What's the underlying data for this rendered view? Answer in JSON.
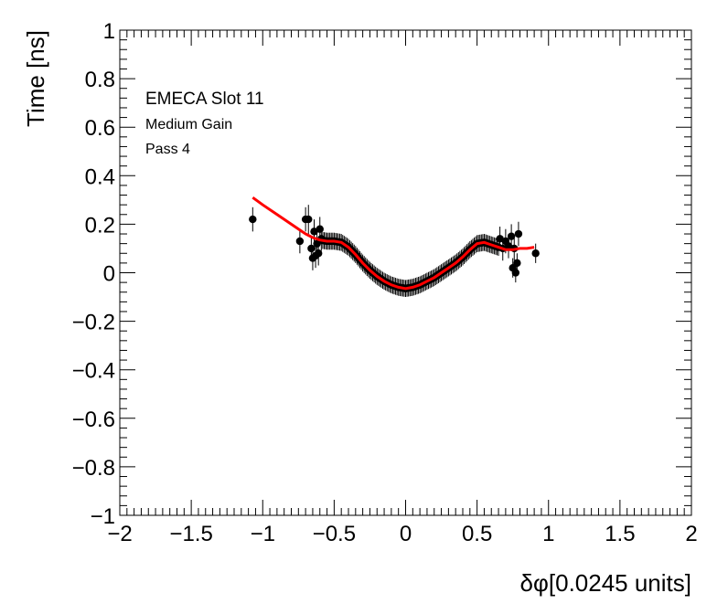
{
  "chart_data": {
    "type": "scatter",
    "title": "",
    "xlabel": "δφ[0.0245 units]",
    "ylabel": "Time [ns]",
    "xlim": [
      -2,
      2
    ],
    "ylim": [
      -1,
      1
    ],
    "x_ticks": [
      -2,
      -1.5,
      -1,
      -0.5,
      0,
      0.5,
      1,
      1.5,
      2
    ],
    "x_tick_labels": [
      "−2",
      "−1.5",
      "−1",
      "−0.5",
      "0",
      "0.5",
      "1",
      "1.5",
      "2"
    ],
    "y_ticks": [
      -1,
      -0.8,
      -0.6,
      -0.4,
      -0.2,
      0,
      0.2,
      0.4,
      0.6,
      0.8,
      1
    ],
    "y_tick_labels": [
      "−1",
      "−0.8",
      "−0.6",
      "−0.4",
      "−0.2",
      "0",
      "0.2",
      "0.4",
      "0.6",
      "0.8",
      "1"
    ],
    "annotations": [
      "EMECA Slot 11",
      "Medium Gain",
      "Pass 4"
    ],
    "grid": false,
    "colors": {
      "points": "#000000",
      "fit": "#ff0000"
    },
    "outlier_points": [
      {
        "x": -1.07,
        "y": 0.22,
        "err": 0.05
      },
      {
        "x": -0.74,
        "y": 0.13,
        "err": 0.05
      },
      {
        "x": -0.7,
        "y": 0.22,
        "err": 0.05
      },
      {
        "x": -0.68,
        "y": 0.22,
        "err": 0.06
      },
      {
        "x": -0.66,
        "y": 0.1,
        "err": 0.05
      },
      {
        "x": -0.65,
        "y": 0.06,
        "err": 0.05
      },
      {
        "x": -0.64,
        "y": 0.17,
        "err": 0.05
      },
      {
        "x": -0.63,
        "y": 0.07,
        "err": 0.05
      },
      {
        "x": -0.62,
        "y": 0.12,
        "err": 0.05
      },
      {
        "x": -0.61,
        "y": 0.08,
        "err": 0.05
      },
      {
        "x": -0.6,
        "y": 0.18,
        "err": 0.05
      },
      {
        "x": -0.59,
        "y": 0.14,
        "err": 0.05
      },
      {
        "x": 0.66,
        "y": 0.14,
        "err": 0.05
      },
      {
        "x": 0.68,
        "y": 0.1,
        "err": 0.05
      },
      {
        "x": 0.7,
        "y": 0.13,
        "err": 0.05
      },
      {
        "x": 0.72,
        "y": 0.11,
        "err": 0.05
      },
      {
        "x": 0.74,
        "y": 0.15,
        "err": 0.05
      },
      {
        "x": 0.75,
        "y": 0.02,
        "err": 0.04
      },
      {
        "x": 0.76,
        "y": 0.1,
        "err": 0.05
      },
      {
        "x": 0.77,
        "y": 0.0,
        "err": 0.04
      },
      {
        "x": 0.78,
        "y": 0.04,
        "err": 0.04
      },
      {
        "x": 0.79,
        "y": 0.16,
        "err": 0.05
      },
      {
        "x": 0.91,
        "y": 0.08,
        "err": 0.04
      }
    ],
    "dense_series": {
      "x_start": -0.58,
      "x_end": 0.65,
      "step": 0.01,
      "err": 0.035
    },
    "fit_curve": {
      "x": [
        -1.07,
        -1.0,
        -0.9,
        -0.8,
        -0.7,
        -0.65,
        -0.6,
        -0.55,
        -0.5,
        -0.45,
        -0.4,
        -0.35,
        -0.3,
        -0.25,
        -0.2,
        -0.15,
        -0.1,
        -0.05,
        0.0,
        0.05,
        0.1,
        0.15,
        0.2,
        0.25,
        0.3,
        0.35,
        0.4,
        0.45,
        0.5,
        0.55,
        0.6,
        0.65,
        0.7,
        0.75,
        0.8,
        0.85,
        0.9
      ],
      "y": [
        0.31,
        0.28,
        0.24,
        0.2,
        0.16,
        0.145,
        0.135,
        0.13,
        0.13,
        0.125,
        0.105,
        0.075,
        0.04,
        0.01,
        -0.015,
        -0.035,
        -0.05,
        -0.06,
        -0.065,
        -0.06,
        -0.05,
        -0.035,
        -0.02,
        0.0,
        0.02,
        0.04,
        0.065,
        0.095,
        0.12,
        0.125,
        0.115,
        0.105,
        0.095,
        0.095,
        0.1,
        0.1,
        0.105
      ]
    }
  }
}
